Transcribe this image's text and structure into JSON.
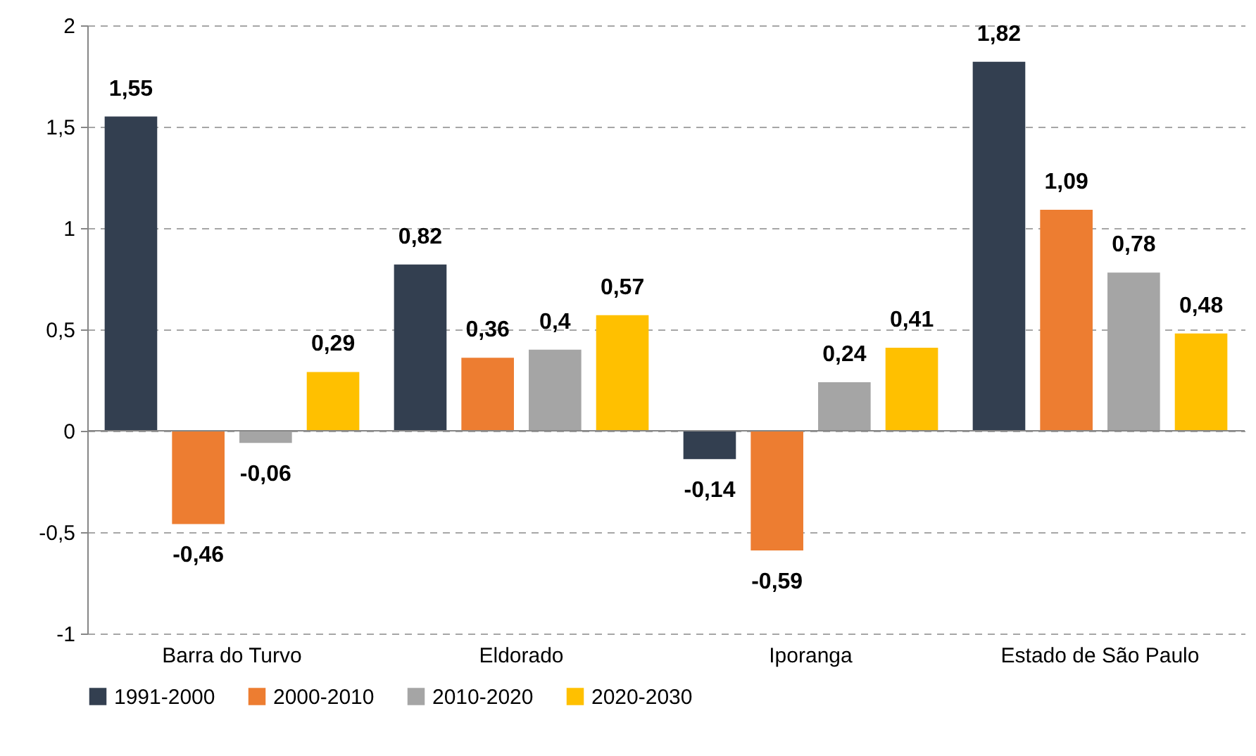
{
  "chart_data": {
    "type": "bar",
    "categories": [
      "Barra do Turvo",
      "Eldorado",
      "Iporanga",
      "Estado de São Paulo"
    ],
    "series": [
      {
        "name": "1991-2000",
        "color": "#333f50",
        "values": [
          1.55,
          0.82,
          -0.14,
          1.82
        ],
        "value_labels": [
          "1,55",
          "0,82",
          "-0,14",
          "1,82"
        ]
      },
      {
        "name": "2000-2010",
        "color": "#ed7d31",
        "values": [
          -0.46,
          0.36,
          -0.59,
          1.09
        ],
        "value_labels": [
          "-0,46",
          "0,36",
          "-0,59",
          "1,09"
        ]
      },
      {
        "name": "2010-2020",
        "color": "#a5a5a5",
        "values": [
          -0.06,
          0.4,
          0.24,
          0.78
        ],
        "value_labels": [
          "-0,06",
          "0,4",
          "0,24",
          "0,78"
        ]
      },
      {
        "name": "2020-2030",
        "color": "#ffc000",
        "values": [
          0.29,
          0.57,
          0.41,
          0.48
        ],
        "value_labels": [
          "0,29",
          "0,57",
          "0,41",
          "0,48"
        ]
      }
    ],
    "ylim": [
      -1,
      2
    ],
    "yticks": [
      {
        "value": -1,
        "label": "-1"
      },
      {
        "value": -0.5,
        "label": "-0,5"
      },
      {
        "value": 0,
        "label": "0"
      },
      {
        "value": 0.5,
        "label": "0,5"
      },
      {
        "value": 1,
        "label": "1"
      },
      {
        "value": 1.5,
        "label": "1,5"
      },
      {
        "value": 2,
        "label": "2"
      }
    ],
    "grid": "y",
    "legend": "bottom"
  }
}
